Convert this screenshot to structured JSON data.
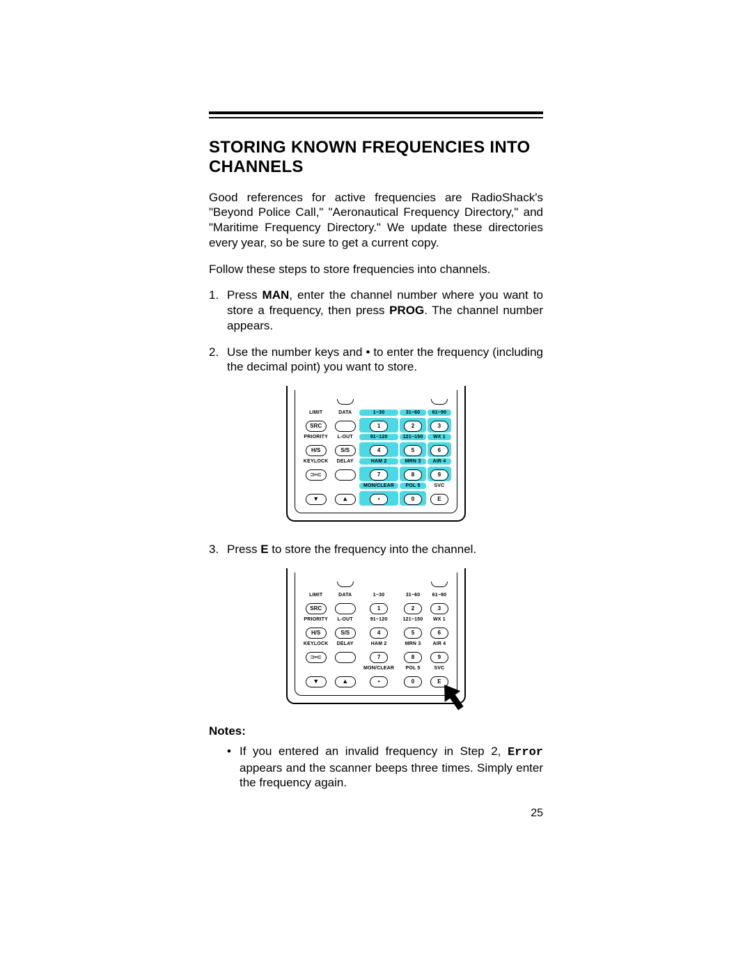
{
  "title": "STORING KNOWN FREQUENCIES INTO CHANNELS",
  "p1": "Good references for active frequencies are RadioShack's \"Beyond Police Call,\" \"Aeronautical Frequency Directory,\" and \"Maritime Frequency Directory.\" We update these directories every year, so be sure to get a current copy.",
  "p2": "Follow these steps to store frequencies into channels.",
  "step1_a": "Press ",
  "step1_man": "MAN",
  "step1_b": ", enter the channel number where you want to store a frequency, then press ",
  "step1_prog": "PROG",
  "step1_c": ". The channel number appears.",
  "step2": "Use the number keys and • to enter the frequency (including the decimal point) you want to store.",
  "step3_a": "Press ",
  "step3_e": "E",
  "step3_b": " to store the frequency into the channel.",
  "notes_h": "Notes:",
  "note1_a": "If you entered an invalid frequency in Step 2, ",
  "note1_err": "Error",
  "note1_b": " appears and the scanner beeps three times. Simply enter the frequency again.",
  "pagenum": "25",
  "pad": {
    "leftLabels": [
      "LIMIT",
      "DATA",
      "PRIORITY",
      "L-OUT",
      "KEYLOCK",
      "DELAY"
    ],
    "leftBtns": [
      "SRC",
      "",
      "H/S",
      "S/S",
      "⊃•⊂",
      ""
    ],
    "numLabelsRow1": [
      "1~30",
      "31~60",
      "61~90"
    ],
    "numLabelsRow2": [
      "91~120",
      "121~150",
      "WX 1"
    ],
    "numLabelsRow3": [
      "HAM 2",
      "MRN 3",
      "AIR 4"
    ],
    "numLabelsRow4": [
      "MON/CLEAR",
      "POL 5",
      "SVC"
    ],
    "nums": [
      [
        "1",
        "2",
        "3"
      ],
      [
        "4",
        "5",
        "6"
      ],
      [
        "7",
        "8",
        "9"
      ],
      [
        "•",
        "0",
        "E"
      ]
    ],
    "arrows": [
      "▼",
      "▲"
    ]
  },
  "colors": {
    "highlight": "#4cd9e6",
    "text": "#000000",
    "bg": "#ffffff"
  }
}
